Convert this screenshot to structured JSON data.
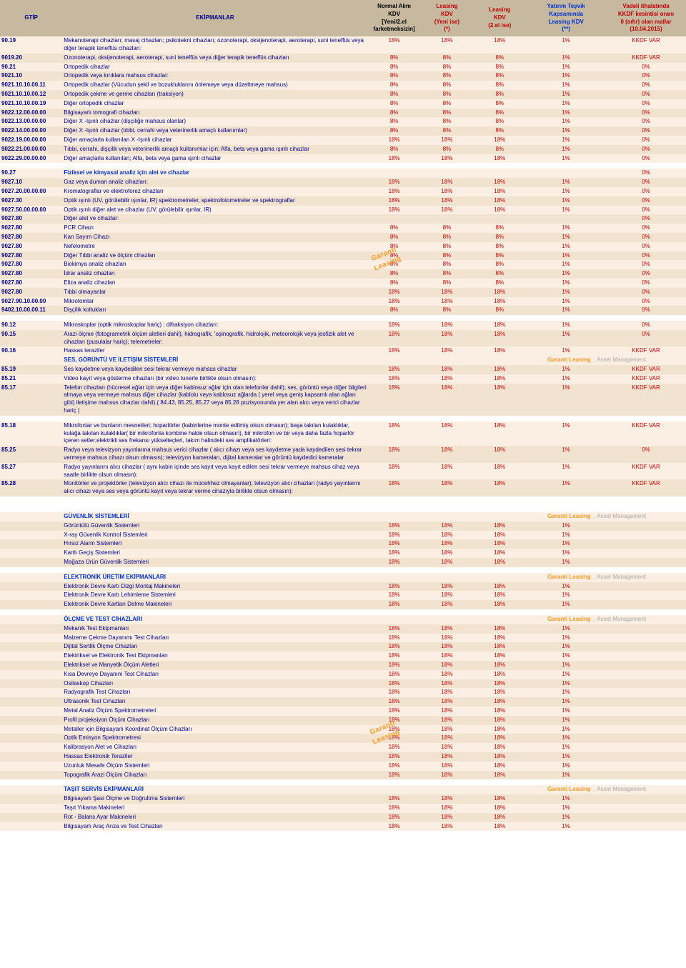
{
  "headers": {
    "gtip": "GTİP",
    "ekip": "EKİPMANLAR",
    "h1": "Normal Alım\nKDV\n[Yeni/2.el\nfarketmeksizin]",
    "h2": "Leasing\nKDV\n(Yeni ise)\n(*)",
    "h3": "Leasing\nKDV\n(2.el ise)",
    "h4": "Yatırım Teşvik\nKapsamında\nLeasing KDV\n(**)",
    "h5": "Vadeli ithalatında\nKKDF kesintisi oranı\n0 (sıfır) olan mallar\n(10.04.2015)"
  },
  "header_colors": {
    "h1": "#000",
    "h2": "#c00000",
    "h3": "#c00000",
    "h4": "#0033cc",
    "h5": "#c00000"
  },
  "garanti_label": "Garanti  Leasing _",
  "asset_label": " Asset Management",
  "sections": [
    {
      "rows": [
        {
          "g": "90.19",
          "d": "Mekanoterapi cihazları; masaj cihazları; psikotekni cihazları; ozonoterapi, oksijenoterapi, aeroterapi, suni teneffüs veya diğer terapik teneffüs cihazları:",
          "v": [
            "18%",
            "18%",
            "18%",
            "1%",
            "KKDF VAR"
          ]
        },
        {
          "g": "9019.20",
          "d": "Ozonoterapi, oksijenoterapi, aeroterapi, suni teneffüs veya diğer terapik teneffüs cihazları",
          "v": [
            "8%",
            "8%",
            "8%",
            "1%",
            "KKDF VAR"
          ]
        },
        {
          "g": "90.21",
          "d": "Ortopedik cihazlar",
          "v": [
            "8%",
            "8%",
            "8%",
            "1%",
            "0%"
          ]
        },
        {
          "g": "9021.10",
          "d": "Ortopedik veya kırıklara mahsus  cihazlar:",
          "v": [
            "8%",
            "8%",
            "8%",
            "1%",
            "0%"
          ]
        },
        {
          "g": "9021.10.10.00.11",
          "d": "Ortopedik cihazlar (Vücudun şekil ve bozukluklarını önlemeye veya düzeltmeye mahsus)",
          "v": [
            "8%",
            "8%",
            "8%",
            "1%",
            "0%"
          ]
        },
        {
          "g": "9021.10.10.00.12",
          "d": "Ortopedik çekme ve germe cihazları (traksiyon)",
          "v": [
            "8%",
            "8%",
            "8%",
            "1%",
            "0%"
          ]
        },
        {
          "g": "9021.10.10.00.19",
          "d": "Diğer ortopedik cihazlar",
          "v": [
            "8%",
            "8%",
            "8%",
            "1%",
            "0%"
          ]
        },
        {
          "g": "9022.12.00.00.00",
          "d": "Bilgisayarlı tomografi cihazları",
          "v": [
            "8%",
            "8%",
            "8%",
            "1%",
            "0%"
          ]
        },
        {
          "g": "9022.13.00.00.00",
          "d": "Diğer X -Işınlı cihazlar (dişçiliğe mahsus olanlar)",
          "v": [
            "8%",
            "8%",
            "8%",
            "1%",
            "0%"
          ]
        },
        {
          "g": "9022.14.00.00.00",
          "d": "Diğer X -Işınlı cihazlar (tıbbi, cerrahi veya veterinerlik amaçlı kullanımlar)",
          "v": [
            "8%",
            "8%",
            "8%",
            "1%",
            "0%"
          ]
        },
        {
          "g": "9022.19.00.00.00",
          "d": "Diğer amaçlarla kullanılan X -Işınlı cihazlar",
          "v": [
            "18%",
            "18%",
            "18%",
            "1%",
            "0%"
          ]
        },
        {
          "g": "9022.21.00.00.00",
          "d": "Tıbbi, cerrahi, dişçilik veya veterinerlik amaçlı kullanımlar için; Alfa, beta veya gama ışınlı cihazlar",
          "v": [
            "8%",
            "8%",
            "8%",
            "1%",
            "0%"
          ]
        },
        {
          "g": "9022.29.00.00.00",
          "d": "Diğer amaçlarla kullanılan; Alfa, beta veya gama ışınlı cihazlar",
          "v": [
            "18%",
            "18%",
            "18%",
            "1%",
            "0%"
          ]
        }
      ]
    },
    {
      "gap": true,
      "rows": [
        {
          "g": "90.27",
          "d": "Fiziksel ve kimyasal analiz için alet ve cihazlar",
          "sect": true,
          "v": [
            "",
            "",
            "",
            "",
            "0%"
          ]
        },
        {
          "g": "9027.10",
          "d": "Gaz veya duman analiz cihazları:",
          "v": [
            "18%",
            "18%",
            "18%",
            "1%",
            "0%"
          ]
        },
        {
          "g": "9027.20.00.00.00",
          "d": "Kromatograflar ve elektroforez cihazları",
          "v": [
            "18%",
            "18%",
            "18%",
            "1%",
            "0%"
          ]
        },
        {
          "g": "9027.30",
          "d": "Optik ışınlı (UV, görülebilir ışınlar, IR) spektrometreler, spektrofotometreler ve spektrograflar",
          "v": [
            "18%",
            "18%",
            "18%",
            "1%",
            "0%"
          ]
        },
        {
          "g": "9027.50.00.00.00",
          "d": "Optik ışınlı diğer alet ve cihazlar (UV, görülebilir ışınlar, IR)",
          "v": [
            "18%",
            "18%",
            "18%",
            "1%",
            "0%"
          ]
        },
        {
          "g": "9027.80",
          "d": "Diğer alet ve cihazlar:",
          "v": [
            "",
            "",
            "",
            "",
            "0%"
          ]
        },
        {
          "g": "9027.80",
          "d": "PCR Cihazı",
          "v": [
            "8%",
            "8%",
            "8%",
            "1%",
            "0%"
          ]
        },
        {
          "g": "9027.80",
          "d": "Kan Sayım Cihazı",
          "v": [
            "8%",
            "8%",
            "8%",
            "1%",
            "0%"
          ]
        },
        {
          "g": "9027.80",
          "d": "Nefelometre",
          "v": [
            "8%",
            "8%",
            "8%",
            "1%",
            "0%"
          ]
        },
        {
          "g": "9027.80",
          "d": "Diğer Tıbbi analiz ve ölçüm cihazları",
          "wm": true,
          "v": [
            "8%",
            "8%",
            "8%",
            "1%",
            "0%"
          ]
        },
        {
          "g": "9027.80",
          "d": "Biokimya analiz cihazları",
          "v": [
            "8%",
            "8%",
            "8%",
            "1%",
            "0%"
          ]
        },
        {
          "g": "9027.80",
          "d": "İdrar analiz cihazları",
          "v": [
            "8%",
            "8%",
            "8%",
            "1%",
            "0%"
          ]
        },
        {
          "g": "9027.80",
          "d": "Eliza analiz cihazları",
          "v": [
            "8%",
            "8%",
            "8%",
            "1%",
            "0%"
          ]
        },
        {
          "g": "9027.80",
          "d": "Tıbbi olmayanlar",
          "v": [
            "18%",
            "18%",
            "18%",
            "1%",
            "0%"
          ]
        },
        {
          "g": "9027.90.10.00.00",
          "d": "Mikrotomlar",
          "v": [
            "18%",
            "18%",
            "18%",
            "1%",
            "0%"
          ]
        },
        {
          "g": "9402.10.00.00.11",
          "d": "Dişçilik koltukları",
          "v": [
            "8%",
            "8%",
            "8%",
            "1%",
            "0%"
          ]
        }
      ]
    },
    {
      "gap": true,
      "rows": [
        {
          "g": "90.12",
          "d": "Mikroskoplar (optik mikroskoplar hariç) ; difraksiyon cihazları:",
          "v": [
            "18%",
            "18%",
            "18%",
            "1%",
            "0%"
          ]
        },
        {
          "g": "90.15",
          "d": "Arazi ölçme (fotogrametrik ölçüm aletleri dahil), hidrografik, 'oşinografik, hidrolojik, meteorolojik veya jeofizik alet ve cihazları (pusulalar hariç); telemetreler:",
          "v": [
            "18%",
            "18%",
            "18%",
            "1%",
            "0%"
          ]
        },
        {
          "g": "90.16",
          "d": "Hassas teraziler",
          "v": [
            "18%",
            "18%",
            "18%",
            "1%",
            "KKDF VAR"
          ]
        }
      ]
    },
    {
      "title": "SES, GÖRÜNTÜ VE İLETİŞİM SİSTEMLERİ",
      "garanti": true,
      "rows": [
        {
          "g": "85.19",
          "d": "Ses kaydetme veya kaydedilen sesi tekrar vermeye mahsus cihazlar",
          "v": [
            "18%",
            "18%",
            "18%",
            "1%",
            "KKDF VAR"
          ]
        },
        {
          "g": "85.21",
          "d": "Video kayıt veya gösterme cihazları (bir video tunerle birlikte olsun olmasın):",
          "v": [
            "18%",
            "18%",
            "18%",
            "1%",
            "KKDF VAR"
          ]
        },
        {
          "g": "85.17",
          "d": "Telefon cihazları (hücresel ağlar için veya diğer kablosuz ağlar için  olan telefonlar dahil); ses, görüntü veya diğer bilgileri almaya veya  vermeye  mahsus diğer cihazlar (kablolu veya kablosuz ağlarda  ( yerel veya geniş kapsamlı alan ağları gibi) iletişime mahsus cihazlar  dahil),( 84.43, 85.25, 85.27 veya 85.28 pozisyonunda yer alan alıcı veya verici cihazlar hariç )",
          "v": [
            "18%",
            "18%",
            "18%",
            "1%",
            "KKDF VAR"
          ]
        }
      ]
    },
    {
      "gap": true,
      "rows": [
        {
          "g": "85.18",
          "d": "Mikrofonlar ve bunların mesnetleri; hoparlörler (kabinlerine monte edilmiş olsun olmasın); başa takılan kulaklıklar, kulağa takılan kulaklıklar( bir mikrofonla kombine halde olsun olmasın), bir mikrofon ve bir veya daha fazla hoparlör içeren setler;elektrikli  ses frekansı yükselteçleri, takım halindeki ses amplikatörleri:",
          "v": [
            "18%",
            "18%",
            "18%",
            "1%",
            "KKDF VAR"
          ]
        },
        {
          "g": "85.25",
          "d": " Radyo veya televizyon yayınlarına mahsus verici cihazlar ( alıcı cihazı veya ses kaydetme yada kaydedilen sesi tekrar vermeye  mahsus cihazı olsun olmasın); televizyon kameraları, dijital kameralar ve görüntü  kaydedici kameralar",
          "v": [
            "18%",
            "18%",
            "18%",
            "1%",
            "0%"
          ]
        },
        {
          "g": "85.27",
          "d": " Radyo yayınlarını alıcı cihazlar ( aynı kabin içinde ses kayıt veya  kayıt edilen sesi tekrar vermeye mahsus cihaz veya saatle birlikte olsun olmasın):",
          "v": [
            "18%",
            "18%",
            "18%",
            "1%",
            "KKDF VAR"
          ]
        },
        {
          "g": "85.28",
          "d": " Monitörler ve projektörler (televizyon alıcı cihazı ile mücehhez olmayanlar); televizyon alıcı cihazları (radyo yayınlarını alıcı cihazı veya ses veya görüntü kayıt veya tekrar verme cihazıyla birlikte olsun olmasın):",
          "v": [
            "18%",
            "18%",
            "18%",
            "1%",
            "KKDF VAR"
          ]
        }
      ]
    },
    {
      "gapbig": true,
      "title": "GÜVENLİK SİSTEMLERİ",
      "garanti": true,
      "rows": [
        {
          "g": "",
          "d": "Görüntülü Güvenlik Sistemleri",
          "v": [
            "18%",
            "18%",
            "18%",
            "1%",
            ""
          ]
        },
        {
          "g": "",
          "d": "X-ray Güvenlik Kontrol Sistemleri",
          "v": [
            "18%",
            "18%",
            "18%",
            "1%",
            ""
          ]
        },
        {
          "g": "",
          "d": "Hırsız Alarm Sistemleri",
          "v": [
            "18%",
            "18%",
            "18%",
            "1%",
            ""
          ]
        },
        {
          "g": "",
          "d": "Kartlı Geçiş Sistemleri",
          "v": [
            "18%",
            "18%",
            "18%",
            "1%",
            ""
          ]
        },
        {
          "g": "",
          "d": "Mağaza Ürün Güvenlik Sistemleri",
          "v": [
            "18%",
            "18%",
            "18%",
            "1%",
            ""
          ]
        }
      ]
    },
    {
      "gap": true,
      "title": "ELEKTRONİK ÜRETİM EKİPMANLARI",
      "garanti": true,
      "rows": [
        {
          "g": "",
          "d": "Elektronik Devre Kartı Dizgi Montaj Makineleri",
          "v": [
            "18%",
            "18%",
            "18%",
            "1%",
            ""
          ]
        },
        {
          "g": "",
          "d": "Elektronik Devre Kartı Lehimleme Sistemleri",
          "v": [
            "18%",
            "18%",
            "18%",
            "1%",
            ""
          ]
        },
        {
          "g": "",
          "d": "Elektronik Devre Kartları Delme Makineleri",
          "v": [
            "18%",
            "18%",
            "18%",
            "1%",
            ""
          ]
        }
      ]
    },
    {
      "gap": true,
      "title": "ÖLÇME VE TEST CİHAZLARI",
      "garanti": true,
      "rows": [
        {
          "g": "",
          "d": "Mekanik Test Ekipmanları",
          "v": [
            "18%",
            "18%",
            "18%",
            "1%",
            ""
          ]
        },
        {
          "g": "",
          "d": "Malzeme Çekme Dayanımı Test Cihazları",
          "v": [
            "18%",
            "18%",
            "18%",
            "1%",
            ""
          ]
        },
        {
          "g": "",
          "d": "Dijital Sertlik Ölçme Cihazları",
          "v": [
            "18%",
            "18%",
            "18%",
            "1%",
            ""
          ]
        },
        {
          "g": "",
          "d": "Elektriksel ve Elektronik Test Ekipmanları",
          "v": [
            "18%",
            "18%",
            "18%",
            "1%",
            ""
          ]
        },
        {
          "g": "",
          "d": "Elektriksel ve Manyetik Ölçüm Aletleri",
          "v": [
            "18%",
            "18%",
            "18%",
            "1%",
            ""
          ]
        },
        {
          "g": "",
          "d": "Kısa Devreye Dayanım Test Cihazları",
          "v": [
            "18%",
            "18%",
            "18%",
            "1%",
            ""
          ]
        },
        {
          "g": "",
          "d": "Osilaskop Cihazları",
          "v": [
            "18%",
            "18%",
            "18%",
            "1%",
            ""
          ]
        },
        {
          "g": "",
          "d": "Radyografik Test Cihazları",
          "v": [
            "18%",
            "18%",
            "18%",
            "1%",
            ""
          ]
        },
        {
          "g": "",
          "d": "Ultrasonik Test Cıhazları",
          "v": [
            "18%",
            "18%",
            "18%",
            "1%",
            ""
          ]
        },
        {
          "g": "",
          "d": "Metal Analiz Ölçüm Spektrometreleri",
          "v": [
            "18%",
            "18%",
            "18%",
            "1%",
            ""
          ]
        },
        {
          "g": "",
          "d": "Profil projeksiyon Ölçüm Cihazları",
          "v": [
            "18%",
            "18%",
            "18%",
            "1%",
            ""
          ]
        },
        {
          "g": "",
          "d": "Metaller için Bilgisayarlı Koordinat Ölçüm Cihazları",
          "wm": true,
          "v": [
            "18%",
            "18%",
            "18%",
            "1%",
            ""
          ]
        },
        {
          "g": "",
          "d": "Optik Emisyon Spektrometresi",
          "v": [
            "18%",
            "18%",
            "18%",
            "1%",
            ""
          ]
        },
        {
          "g": "",
          "d": "Kalibrasyon Alet ve Cihazları",
          "v": [
            "18%",
            "18%",
            "18%",
            "1%",
            ""
          ]
        },
        {
          "g": "",
          "d": "Hassas Elektronik Teraziler",
          "v": [
            "18%",
            "18%",
            "18%",
            "1%",
            ""
          ]
        },
        {
          "g": "",
          "d": "Uzunluk Mesafe Ölçüm Sistemleri",
          "v": [
            "18%",
            "18%",
            "18%",
            "1%",
            ""
          ]
        },
        {
          "g": "",
          "d": "Topografik Arazi Ölçüm Cihazları",
          "v": [
            "18%",
            "18%",
            "18%",
            "1%",
            ""
          ]
        }
      ]
    },
    {
      "gap": true,
      "title": "TAŞIT SERVİS EKİPMANLARI",
      "garanti": true,
      "rows": [
        {
          "g": "",
          "d": "Bilgisayarlı Şasi Ölçme ve Doğrultma Sistemleri",
          "v": [
            "18%",
            "18%",
            "18%",
            "1%",
            ""
          ]
        },
        {
          "g": "",
          "d": "Taşıt Yıkama Makineleri",
          "v": [
            "18%",
            "18%",
            "18%",
            "1%",
            ""
          ]
        },
        {
          "g": "",
          "d": "Rot - Balans Ayar Makineleri",
          "v": [
            "18%",
            "18%",
            "18%",
            "1%",
            ""
          ]
        },
        {
          "g": "",
          "d": "Bilgisayarlı Araç Arıza ve Test Cihazları",
          "v": [
            "18%",
            "18%",
            "18%",
            "1%",
            ""
          ]
        }
      ]
    }
  ]
}
